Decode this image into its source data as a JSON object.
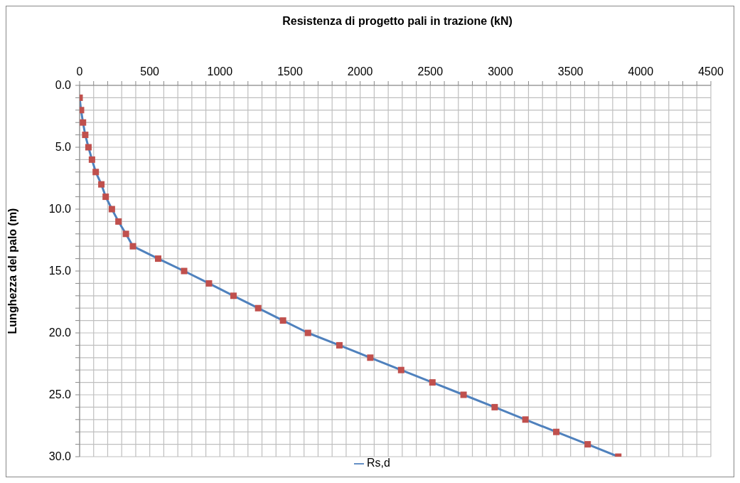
{
  "chart_data": {
    "type": "line",
    "xlabel": "Resistenza di progetto pali in trazione (kN)",
    "ylabel": "Lunghezza del palo (m)",
    "series": [
      {
        "name": "Rs,d",
        "color": "#4f81bd",
        "x": [
          0,
          10,
          24,
          40,
          63,
          88,
          115,
          155,
          186,
          230,
          277,
          330,
          380,
          560,
          745,
          922,
          1097,
          1273,
          1450,
          1628,
          1852,
          2072,
          2292,
          2515,
          2737,
          2959,
          3178,
          3398,
          3622,
          3840
        ],
        "values": [
          1,
          2,
          3,
          4,
          5,
          6,
          7,
          8,
          9,
          10,
          11,
          12,
          13,
          14,
          15,
          16,
          17,
          18,
          19,
          20,
          21,
          22,
          23,
          24,
          25,
          26,
          27,
          28,
          29,
          30
        ],
        "colors": [
          "#c0504d",
          "#c0504d",
          "#c0504d",
          "#c0504d",
          "#c0504d",
          "#c0504d",
          "#c0504d",
          "#c0504d",
          "#c0504d",
          "#c0504d",
          "#c0504d",
          "#c0504d",
          "#c0504d",
          "#c0504d",
          "#c0504d",
          "#c0504d",
          "#c0504d",
          "#c0504d",
          "#c0504d",
          "#c0504d",
          "#c0504d",
          "#c0504d",
          "#c0504d",
          "#c0504d",
          "#c0504d",
          "#c0504d",
          "#c0504d",
          "#c0504d",
          "#c0504d",
          "#c0504d"
        ]
      }
    ],
    "xlim": [
      0,
      4500
    ],
    "xticks": [
      0,
      {
        "value": 100,
        "label": null
      },
      {
        "value": 200,
        "label": null
      },
      {
        "value": 300,
        "label": null
      },
      {
        "value": 400,
        "label": null
      },
      500,
      {
        "value": 600,
        "label": null
      },
      {
        "value": 700,
        "label": null
      },
      {
        "value": 800,
        "label": null
      },
      {
        "value": 900,
        "label": null
      },
      1000,
      {
        "value": 1100,
        "label": null
      },
      {
        "value": 1200,
        "label": null
      },
      {
        "value": 1300,
        "label": null
      },
      {
        "value": 1400,
        "label": null
      },
      1500,
      {
        "value": 1600,
        "label": null
      },
      {
        "value": 1700,
        "label": null
      },
      {
        "value": 1800,
        "label": null
      },
      {
        "value": 1900,
        "label": null
      },
      2000,
      {
        "value": 2100,
        "label": null
      },
      {
        "value": 2200,
        "label": null
      },
      {
        "value": 2300,
        "label": null
      },
      {
        "value": 2400,
        "label": null
      },
      2500,
      {
        "value": 2600,
        "label": null
      },
      {
        "value": 2700,
        "label": null
      },
      {
        "value": 2800,
        "label": null
      },
      {
        "value": 2900,
        "label": null
      },
      3000,
      {
        "value": 3100,
        "label": null
      },
      {
        "value": 3200,
        "label": null
      },
      {
        "value": 3300,
        "label": null
      },
      {
        "value": 3400,
        "label": null
      },
      3500,
      {
        "value": 3600,
        "label": null
      },
      {
        "value": 3700,
        "label": null
      },
      {
        "value": 3800,
        "label": null
      },
      {
        "value": 3900,
        "label": null
      },
      4000,
      {
        "value": 4100,
        "label": null
      },
      {
        "value": 4200,
        "label": null
      },
      {
        "value": 4300,
        "label": null
      },
      {
        "value": 4400,
        "label": null
      },
      4500
    ],
    "ylim": [
      30,
      0
    ],
    "yticks": [
      {
        "value": 0,
        "label": "0.0"
      },
      {
        "value": 1,
        "label": null
      },
      {
        "value": 2,
        "label": null
      },
      {
        "value": 3,
        "label": null
      },
      {
        "value": 4,
        "label": null
      },
      {
        "value": 5,
        "label": "5.0"
      },
      {
        "value": 6,
        "label": null
      },
      {
        "value": 7,
        "label": null
      },
      {
        "value": 8,
        "label": null
      },
      {
        "value": 9,
        "label": null
      },
      {
        "value": 10,
        "label": "10.0"
      },
      {
        "value": 11,
        "label": null
      },
      {
        "value": 12,
        "label": null
      },
      {
        "value": 13,
        "label": null
      },
      {
        "value": 14,
        "label": null
      },
      {
        "value": 15,
        "label": "15.0"
      },
      {
        "value": 16,
        "label": null
      },
      {
        "value": 17,
        "label": null
      },
      {
        "value": 18,
        "label": null
      },
      {
        "value": 19,
        "label": null
      },
      {
        "value": 20,
        "label": "20.0"
      },
      {
        "value": 21,
        "label": null
      },
      {
        "value": 22,
        "label": null
      },
      {
        "value": 23,
        "label": null
      },
      {
        "value": 24,
        "label": null
      },
      {
        "value": 25,
        "label": "25.0"
      },
      {
        "value": 26,
        "label": null
      },
      {
        "value": 27,
        "label": null
      },
      {
        "value": 28,
        "label": null
      },
      {
        "value": 29,
        "label": null
      },
      {
        "value": 30,
        "label": "30.0"
      }
    ],
    "grid": true,
    "legend": "bottom",
    "marker": "square",
    "line_style": "solid"
  }
}
